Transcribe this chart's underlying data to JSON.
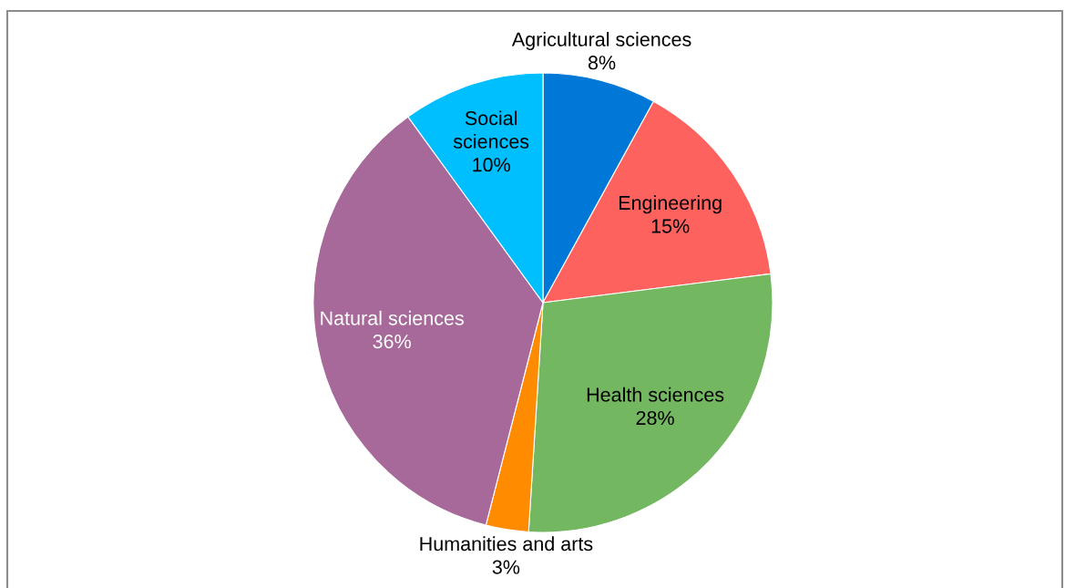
{
  "chart_data": {
    "type": "pie",
    "categories": [
      "Agricultural sciences",
      "Engineering",
      "Health sciences",
      "Humanities and arts",
      "Natural sciences",
      "Social sciences"
    ],
    "values": [
      8,
      15,
      28,
      3,
      36,
      10
    ],
    "colors": [
      "#0078d7",
      "#fd625e",
      "#73b761",
      "#ff8c00",
      "#a66999",
      "#00bfff"
    ],
    "value_labels": [
      "8%",
      "15%",
      "28%",
      "3%",
      "36%",
      "10%"
    ]
  }
}
